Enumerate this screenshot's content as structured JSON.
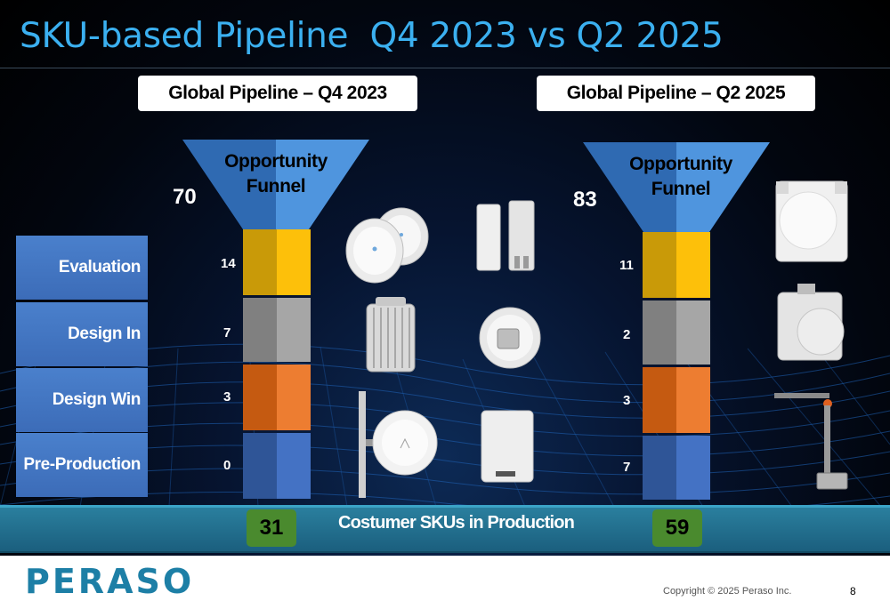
{
  "title": "SKU-based Pipeline  Q4 2023 vs Q2 2025",
  "left_pipeline": {
    "title": "Global Pipeline – Q4 2023",
    "funnel_label": "Opportunity Funnel",
    "opportunity": "70",
    "stages": [
      "14",
      "7",
      "3",
      "0"
    ],
    "production": "31"
  },
  "right_pipeline": {
    "title": "Global Pipeline – Q2 2025",
    "funnel_label": "Opportunity Funnel",
    "opportunity": "83",
    "stages": [
      "11",
      "2",
      "3",
      "7"
    ],
    "production": "59"
  },
  "stage_labels": [
    "Evaluation",
    "Design In",
    "Design Win",
    "Pre-Production"
  ],
  "production_label": "Costumer SKUs in Production",
  "footer": {
    "logo": "PERASO",
    "copyright": "Copyright © 2025 Peraso Inc.",
    "page": "8"
  },
  "colors": {
    "title": "#3bb0f0",
    "funnel": "#3c7fd0",
    "evaluation": "#f4b400",
    "design_in": "#a6a6a6",
    "design_win": "#ed7d31",
    "pre_production": "#4472c4",
    "production": "#4a8a2e",
    "logo": "#1d7fa6"
  },
  "icons": [
    "dish-antenna-icon",
    "outdoor-radio-icon",
    "sector-antenna-icon",
    "industrial-enclosure-icon",
    "mounting-pole-icon"
  ]
}
